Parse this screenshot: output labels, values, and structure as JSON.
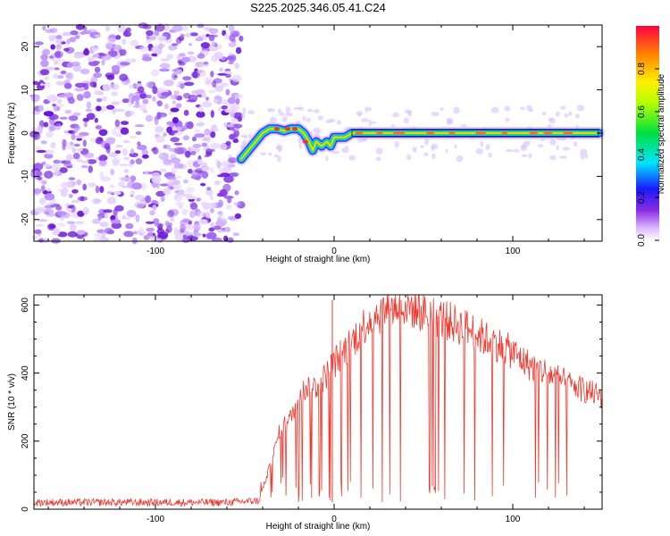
{
  "title": "S225.2025.346.05.41.C24",
  "chart_data": [
    {
      "type": "heatmap",
      "xlabel": "Height of straight line (km)",
      "ylabel": "Frequency (Hz)",
      "xlim": [
        -168,
        150
      ],
      "ylim": [
        -25,
        25
      ],
      "xticks": [
        -100,
        0,
        100
      ],
      "xtick_labels": [
        "-100",
        "0",
        "100"
      ],
      "yticks": [
        -20,
        -10,
        0,
        10,
        20
      ],
      "ytick_labels": [
        "-20",
        "-10",
        "0",
        "10",
        "20"
      ],
      "noise_region_x": [
        -168,
        -52
      ],
      "track": {
        "x": [
          -52,
          -48,
          -44,
          -40,
          -36,
          -32,
          -28,
          -24,
          -20,
          -17,
          -14,
          -12,
          -10,
          -7,
          -4,
          -2,
          0,
          3,
          6,
          10,
          20,
          40,
          60,
          80,
          100,
          120,
          148
        ],
        "y": [
          -6,
          -4,
          -2,
          0,
          1,
          1,
          0.5,
          1,
          1,
          0,
          -2,
          -4,
          -2,
          -3,
          -2,
          -3,
          -1,
          -1,
          -1,
          0,
          0,
          0,
          0,
          0,
          0,
          0,
          0
        ]
      },
      "colorbar": {
        "label": "Normalized spectral amplitude",
        "ticks": [
          0.0,
          0.2,
          0.4,
          0.6,
          0.8
        ],
        "tick_labels": [
          "0.0",
          "0.2",
          "0.4",
          "0.6",
          "0.8"
        ],
        "range": [
          0,
          1
        ]
      }
    },
    {
      "type": "line",
      "xlabel": "Height of straight line (km)",
      "ylabel": "SNR (10 * v/v)",
      "xlim": [
        -168,
        150
      ],
      "ylim": [
        0,
        630
      ],
      "xticks": [
        -100,
        0,
        100
      ],
      "xtick_labels": [
        "-100",
        "0",
        "100"
      ],
      "yticks": [
        0,
        200,
        400,
        600
      ],
      "ytick_labels": [
        "0",
        "200",
        "400",
        "600"
      ],
      "series": [
        {
          "name": "SNR",
          "x": [
            -168,
            -140,
            -100,
            -60,
            -42,
            -40,
            -35,
            -30,
            -25,
            -20,
            -15,
            -10,
            -5,
            0,
            5,
            10,
            15,
            20,
            25,
            30,
            35,
            40,
            45,
            50,
            55,
            60,
            65,
            70,
            75,
            80,
            85,
            90,
            95,
            100,
            105,
            110,
            115,
            120,
            125,
            130,
            135,
            140,
            145,
            150
          ],
          "values": [
            20,
            20,
            20,
            20,
            25,
            60,
            140,
            240,
            260,
            330,
            360,
            360,
            390,
            430,
            460,
            490,
            530,
            560,
            575,
            590,
            595,
            600,
            590,
            580,
            570,
            560,
            550,
            540,
            530,
            515,
            500,
            490,
            475,
            460,
            440,
            420,
            410,
            400,
            385,
            370,
            360,
            350,
            340,
            330
          ]
        }
      ]
    }
  ],
  "colors": {
    "line": "#f03a30",
    "noise": "#8a2be2",
    "track_core": "#ff6a2a"
  }
}
